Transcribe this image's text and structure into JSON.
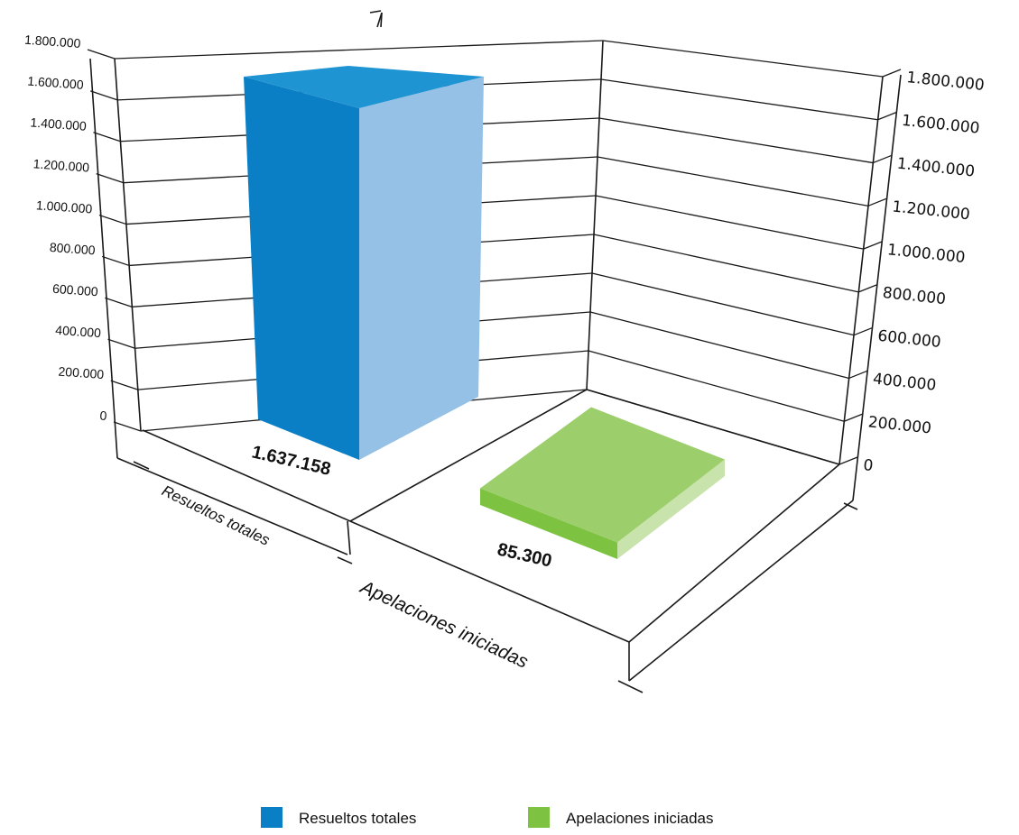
{
  "chart_data": {
    "type": "bar",
    "categories": [
      "Resueltos totales",
      "Apelaciones iniciadas"
    ],
    "series": [
      {
        "name": "Resueltos totales",
        "values": [
          1637158,
          null
        ],
        "color": "#0a7fc5"
      },
      {
        "name": "Apelaciones iniciadas",
        "values": [
          null,
          85300
        ],
        "color": "#7dc341"
      }
    ],
    "data_labels": [
      "1.637.158",
      "85.300"
    ],
    "ylim": [
      0,
      1800000
    ],
    "yticks": [
      "0",
      "200.000",
      "400.000",
      "600.000",
      "800.000",
      "1.000.000",
      "1.200.000",
      "1.400.000",
      "1.600.000",
      "1.800.000"
    ],
    "grid": true,
    "projection": "3d",
    "legend_position": "bottom",
    "title": "",
    "xlabel": "",
    "ylabel": ""
  }
}
